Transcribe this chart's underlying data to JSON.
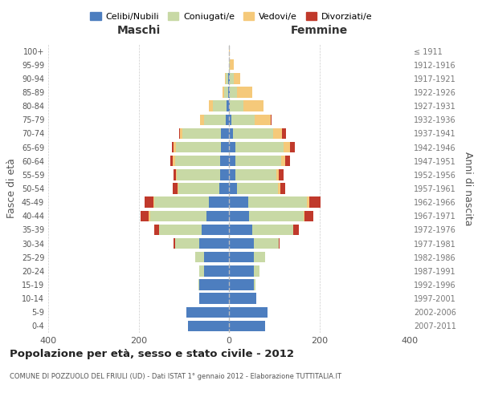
{
  "age_groups": [
    "0-4",
    "5-9",
    "10-14",
    "15-19",
    "20-24",
    "25-29",
    "30-34",
    "35-39",
    "40-44",
    "45-49",
    "50-54",
    "55-59",
    "60-64",
    "65-69",
    "70-74",
    "75-79",
    "80-84",
    "85-89",
    "90-94",
    "95-99",
    "100+"
  ],
  "birth_years": [
    "2007-2011",
    "2002-2006",
    "1997-2001",
    "1992-1996",
    "1987-1991",
    "1982-1986",
    "1977-1981",
    "1972-1976",
    "1967-1971",
    "1962-1966",
    "1957-1961",
    "1952-1956",
    "1947-1951",
    "1942-1946",
    "1937-1941",
    "1932-1936",
    "1927-1931",
    "1922-1926",
    "1917-1921",
    "1912-1916",
    "≤ 1911"
  ],
  "male": {
    "celibi": [
      90,
      95,
      65,
      65,
      55,
      55,
      65,
      60,
      50,
      45,
      22,
      20,
      20,
      18,
      18,
      8,
      5,
      2,
      2,
      0,
      0
    ],
    "coniugati": [
      0,
      0,
      0,
      2,
      10,
      20,
      55,
      95,
      125,
      120,
      90,
      95,
      100,
      100,
      85,
      48,
      30,
      8,
      5,
      0,
      0
    ],
    "vedovi": [
      0,
      0,
      0,
      0,
      0,
      0,
      0,
      0,
      2,
      2,
      2,
      2,
      5,
      5,
      5,
      8,
      10,
      5,
      2,
      0,
      0
    ],
    "divorziati": [
      0,
      0,
      0,
      0,
      0,
      0,
      2,
      10,
      18,
      20,
      10,
      5,
      5,
      3,
      2,
      0,
      0,
      0,
      0,
      0,
      0
    ]
  },
  "female": {
    "nubili": [
      80,
      85,
      60,
      55,
      55,
      55,
      55,
      52,
      45,
      42,
      18,
      15,
      15,
      15,
      8,
      5,
      2,
      2,
      2,
      0,
      0
    ],
    "coniugate": [
      0,
      0,
      0,
      3,
      12,
      25,
      55,
      90,
      120,
      130,
      90,
      90,
      100,
      105,
      90,
      52,
      30,
      15,
      8,
      2,
      0
    ],
    "vedove": [
      0,
      0,
      0,
      0,
      0,
      0,
      0,
      0,
      2,
      5,
      5,
      5,
      10,
      15,
      20,
      35,
      45,
      35,
      15,
      8,
      2
    ],
    "divorziate": [
      0,
      0,
      0,
      0,
      0,
      0,
      2,
      12,
      20,
      25,
      12,
      10,
      10,
      10,
      8,
      2,
      0,
      0,
      0,
      0,
      0
    ]
  },
  "colors": {
    "celibi": "#4d7ebf",
    "coniugati": "#c8d9a5",
    "vedovi": "#f5c97a",
    "divorziati": "#c0392b"
  },
  "title": "Popolazione per età, sesso e stato civile - 2012",
  "subtitle": "COMUNE DI POZZUOLO DEL FRIULI (UD) - Dati ISTAT 1° gennaio 2012 - Elaborazione TUTTITALIA.IT",
  "ylabel_left": "Fasce di età",
  "ylabel_right": "Anni di nascita",
  "xlim": 400,
  "legend_labels": [
    "Celibi/Nubili",
    "Coniugati/e",
    "Vedovi/e",
    "Divorziati/e"
  ],
  "background_color": "#ffffff",
  "grid_color": "#cccccc"
}
